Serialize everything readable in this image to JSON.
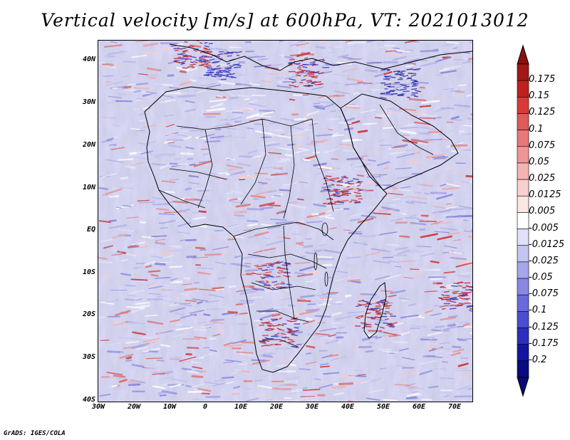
{
  "title": "Vertical velocity [m/s] at 600hPa, VT: 2021013012",
  "footer": "GrADS: IGES/COLA",
  "map": {
    "region": "Africa",
    "variable": "vertical velocity",
    "level": "600hPa",
    "units": "m/s",
    "lat_labels": [
      "40N",
      "30N",
      "20N",
      "10N",
      "EQ",
      "10S",
      "20S",
      "30S",
      "40S"
    ],
    "lon_labels": [
      "30W",
      "20W",
      "10W",
      "0",
      "10E",
      "20E",
      "30E",
      "40E",
      "50E",
      "60E",
      "70E"
    ],
    "lat_range": [
      -40,
      44
    ],
    "lon_range": [
      -30,
      75
    ]
  },
  "colorbar": {
    "labels": [
      "0.175",
      "0.15",
      "0.125",
      "0.1",
      "0.075",
      "0.05",
      "0.025",
      "0.0125",
      "0.005",
      "-0.005",
      "-0.0125",
      "-0.025",
      "-0.05",
      "-0.075",
      "-0.1",
      "-0.125",
      "-0.175",
      "-0.2"
    ],
    "colors": [
      "#a01818",
      "#c02020",
      "#d83a3a",
      "#e05a5a",
      "#e87878",
      "#ee9696",
      "#f4b4b4",
      "#f8d0d0",
      "#fbe6e6",
      "#ffffff",
      "#e0e0f8",
      "#c4c4f2",
      "#a6a6ec",
      "#8888e4",
      "#6a6adc",
      "#4c4cd2",
      "#2e2ebe",
      "#1414a0",
      "#0a0a80"
    ],
    "top_arrow_color": "#8c0f0f",
    "bottom_arrow_color": "#0a0a70"
  }
}
